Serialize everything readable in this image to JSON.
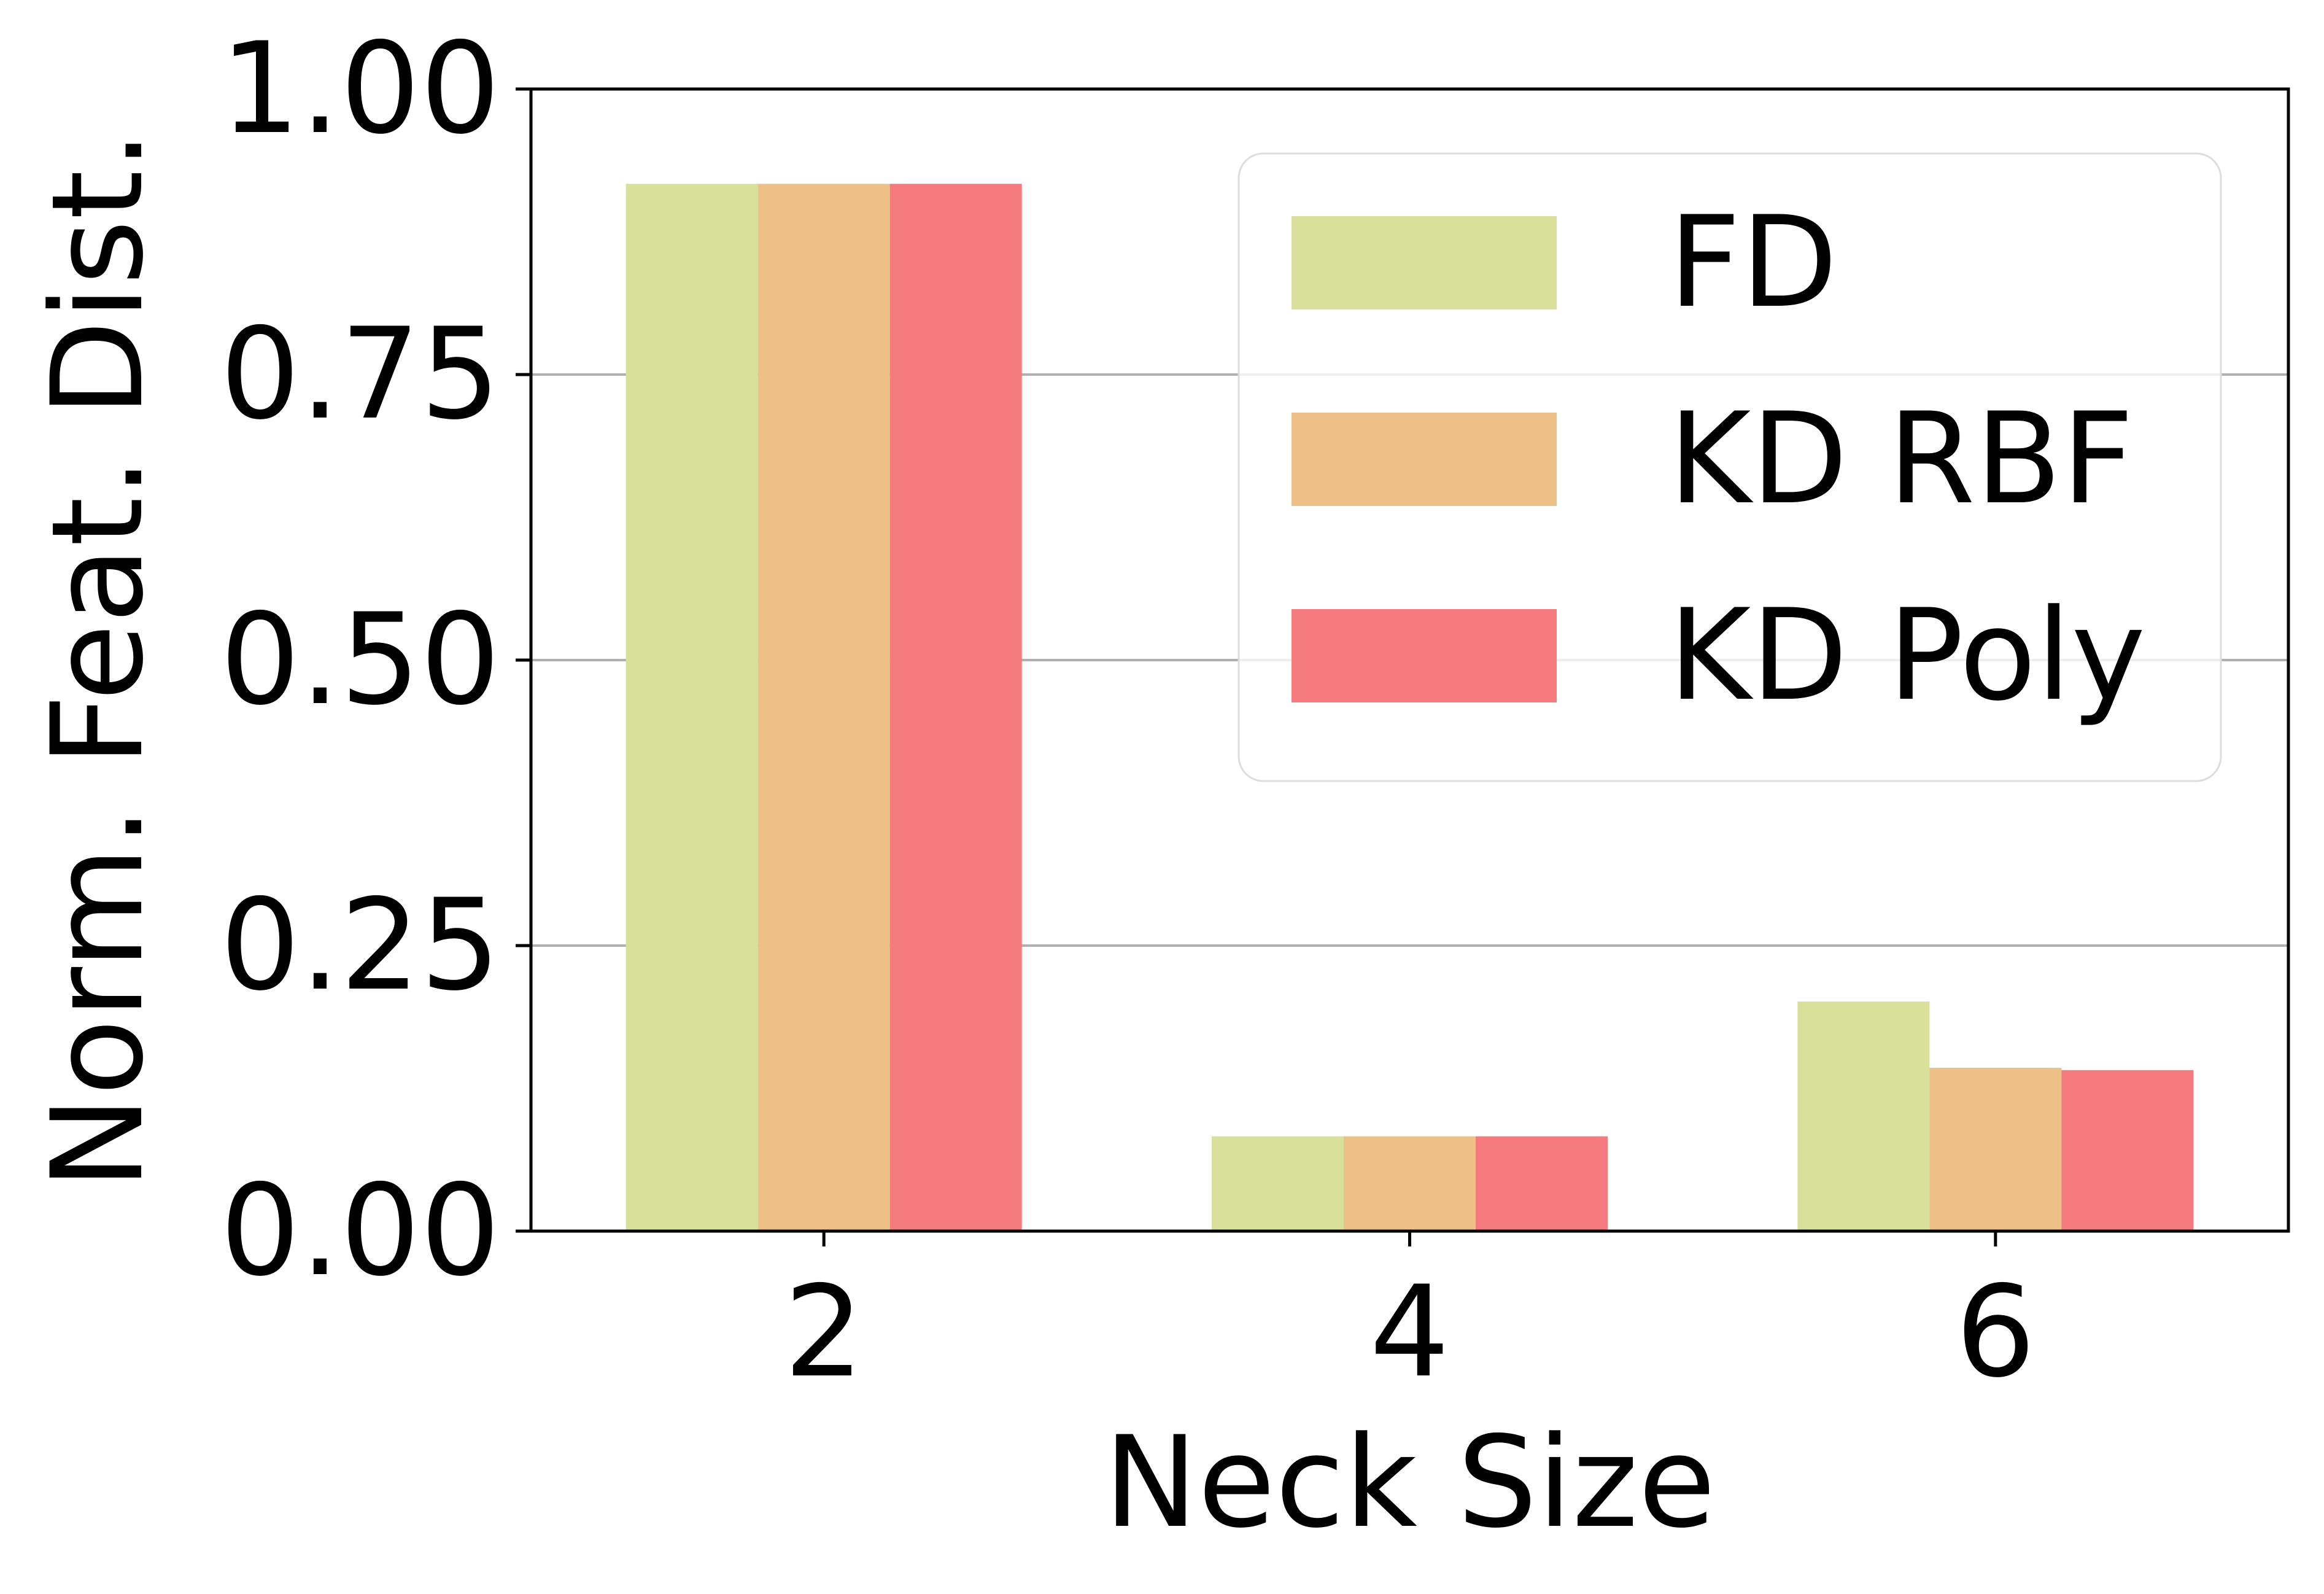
{
  "chart_data": {
    "type": "bar",
    "title": "",
    "xlabel": "Neck Size",
    "ylabel": "Norm. Feat. Dist.",
    "categories": [
      "2",
      "4",
      "6"
    ],
    "series": [
      {
        "name": "FD",
        "values": [
          0.917,
          0.083,
          0.201
        ],
        "color": "#d9e09a"
      },
      {
        "name": "KD RBF",
        "values": [
          0.917,
          0.083,
          0.143
        ],
        "color": "#ecc087"
      },
      {
        "name": "KD Poly",
        "values": [
          0.917,
          0.083,
          0.141
        ],
        "color": "#f47a7d"
      }
    ],
    "ylim": [
      0,
      1
    ],
    "yticks": [
      0,
      0.25,
      0.5,
      0.75,
      1
    ],
    "ytick_labels": [
      "0.00",
      "0.25",
      "0.50",
      "0.75",
      "1.00"
    ],
    "grid": "horizontal",
    "legend_position": "top-right"
  }
}
